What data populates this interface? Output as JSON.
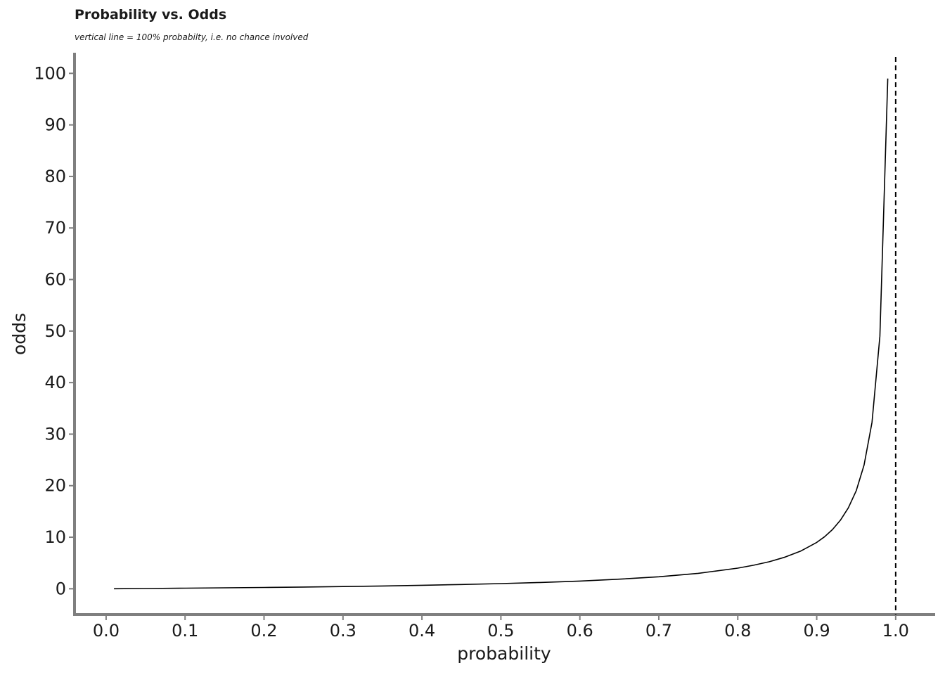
{
  "chart_data": {
    "type": "line",
    "title": "Probability vs. Odds",
    "subtitle": "vertical line = 100% probabilty, i.e. no chance involved",
    "xlabel": "probability",
    "ylabel": "odds",
    "xlim": [
      -0.04,
      1.05
    ],
    "ylim": [
      -5,
      104
    ],
    "xticks": [
      0.0,
      0.1,
      0.2,
      0.3,
      0.4,
      0.5,
      0.6,
      0.7,
      0.8,
      0.9,
      1.0
    ],
    "xtick_labels": [
      "0.0",
      "0.1",
      "0.2",
      "0.3",
      "0.4",
      "0.5",
      "0.6",
      "0.7",
      "0.8",
      "0.9",
      "1.0"
    ],
    "yticks": [
      0,
      10,
      20,
      30,
      40,
      50,
      60,
      70,
      80,
      90,
      100
    ],
    "ytick_labels": [
      "0",
      "10",
      "20",
      "30",
      "40",
      "50",
      "60",
      "70",
      "80",
      "90",
      "100"
    ],
    "grid": false,
    "reference_line": {
      "x": 1.0,
      "style": "dashed"
    },
    "series": [
      {
        "x": [
          0.01,
          0.05,
          0.1,
          0.15,
          0.2,
          0.25,
          0.3,
          0.35,
          0.4,
          0.45,
          0.5,
          0.55,
          0.6,
          0.65,
          0.7,
          0.75,
          0.8,
          0.82,
          0.84,
          0.86,
          0.88,
          0.9,
          0.91,
          0.92,
          0.93,
          0.94,
          0.95,
          0.96,
          0.97,
          0.98,
          0.99
        ],
        "y": [
          0.01,
          0.05,
          0.11,
          0.18,
          0.25,
          0.33,
          0.43,
          0.54,
          0.67,
          0.82,
          1.0,
          1.22,
          1.5,
          1.86,
          2.33,
          3.0,
          4.0,
          4.56,
          5.25,
          6.14,
          7.33,
          9.0,
          10.1,
          11.5,
          13.3,
          15.7,
          19.0,
          24.0,
          32.3,
          49.0,
          99.0
        ]
      }
    ],
    "colors": {
      "line": "#000000",
      "axis": "#7f7f7f",
      "reference_line": "#000000"
    }
  }
}
